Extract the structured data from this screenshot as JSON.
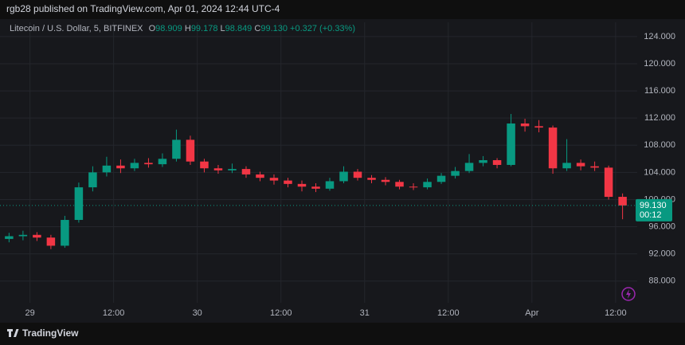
{
  "header": {
    "title": "rgb28 published on TradingView.com, Apr 01, 2024 12:44 UTC-4"
  },
  "chart_data": {
    "type": "candlestick",
    "legend": {
      "symbol": "Litecoin / U.S. Dollar, 5, BITFINEX",
      "o_label": "O",
      "o": "98.909",
      "h_label": "H",
      "h": "99.178",
      "l_label": "L",
      "l": "98.849",
      "c_label": "C",
      "c": "99.130",
      "change": "+0.327 (+0.33%)"
    },
    "x": [
      -3,
      -1,
      1,
      3,
      5,
      7,
      9,
      11,
      13,
      15,
      17,
      19,
      21,
      23,
      25,
      27,
      29,
      31,
      33,
      35,
      37,
      39,
      41,
      43,
      45,
      47,
      49,
      51,
      53,
      55,
      57,
      59,
      61,
      63,
      65,
      67,
      69,
      71,
      73,
      75,
      77,
      79,
      81,
      83,
      85
    ],
    "open": [
      94.2,
      94.6,
      94.8,
      94.4,
      93.2,
      97.0,
      101.8,
      104.0,
      105.0,
      104.6,
      105.4,
      105.2,
      106.0,
      108.8,
      105.6,
      104.6,
      104.3,
      104.5,
      103.7,
      103.2,
      102.8,
      102.3,
      101.9,
      101.6,
      102.7,
      104.1,
      103.2,
      102.9,
      102.6,
      101.9,
      101.8,
      102.6,
      103.5,
      104.2,
      105.4,
      105.8,
      105.1,
      111.2,
      110.8,
      110.6,
      104.6,
      105.4,
      104.9,
      104.7,
      100.4
    ],
    "high": [
      95.1,
      95.4,
      95.2,
      94.8,
      97.6,
      102.5,
      104.9,
      106.3,
      105.9,
      106.0,
      106.1,
      106.8,
      110.3,
      109.4,
      106.0,
      105.1,
      105.3,
      104.9,
      104.1,
      103.7,
      103.2,
      102.8,
      102.4,
      103.2,
      104.9,
      104.5,
      103.6,
      103.3,
      102.9,
      102.4,
      103.1,
      103.9,
      104.8,
      106.7,
      106.4,
      106.1,
      112.6,
      111.9,
      111.7,
      110.9,
      108.9,
      105.9,
      105.6,
      105.0,
      100.9
    ],
    "low": [
      93.7,
      94.0,
      93.9,
      92.7,
      92.9,
      96.6,
      101.2,
      103.4,
      103.9,
      104.2,
      104.7,
      104.8,
      105.6,
      105.1,
      104.0,
      103.8,
      103.9,
      103.2,
      102.7,
      102.2,
      101.8,
      101.2,
      101.1,
      101.3,
      102.4,
      102.8,
      102.4,
      102.1,
      101.5,
      101.4,
      101.5,
      102.3,
      103.1,
      103.9,
      104.9,
      104.6,
      104.9,
      110.0,
      109.9,
      103.8,
      104.2,
      104.3,
      104.2,
      100.0,
      97.1
    ],
    "close": [
      94.6,
      94.8,
      94.4,
      93.2,
      97.0,
      101.8,
      104.0,
      105.0,
      104.6,
      105.4,
      105.2,
      106.0,
      108.8,
      105.6,
      104.6,
      104.3,
      104.5,
      103.7,
      103.2,
      102.8,
      102.3,
      101.9,
      101.6,
      102.7,
      104.1,
      103.2,
      102.9,
      102.6,
      101.9,
      101.8,
      102.6,
      103.5,
      104.2,
      105.4,
      105.8,
      105.1,
      111.2,
      110.8,
      110.6,
      104.6,
      105.4,
      104.9,
      104.7,
      100.4,
      99.13
    ],
    "up_color": "#089981",
    "down_color": "#f23645",
    "xlim": [
      -4.3,
      87.1
    ],
    "xticks": [
      {
        "value": 0,
        "label": "29"
      },
      {
        "value": 12,
        "label": "12:00"
      },
      {
        "value": 24,
        "label": "30"
      },
      {
        "value": 36,
        "label": "12:00"
      },
      {
        "value": 48,
        "label": "31"
      },
      {
        "value": 60,
        "label": "12:00"
      },
      {
        "value": 72,
        "label": "Apr"
      },
      {
        "value": 84,
        "label": "12:00"
      }
    ],
    "ylim": [
      84.8,
      126.1
    ],
    "yticks": [
      {
        "value": 88,
        "label": "88.000"
      },
      {
        "value": 92,
        "label": "92.000"
      },
      {
        "value": 96,
        "label": "96.000"
      },
      {
        "value": 100,
        "label": "100.000"
      },
      {
        "value": 104,
        "label": "104.000"
      },
      {
        "value": 108,
        "label": "108.000"
      },
      {
        "value": 112,
        "label": "112.000"
      },
      {
        "value": 116,
        "label": "116.000"
      },
      {
        "value": 120,
        "label": "120.000"
      },
      {
        "value": 124,
        "label": "124.000"
      }
    ],
    "grid": true,
    "last_price": {
      "value": 99.13,
      "label": "99.130"
    },
    "countdown": "00:12"
  },
  "footer": {
    "brand": "TradingView"
  }
}
